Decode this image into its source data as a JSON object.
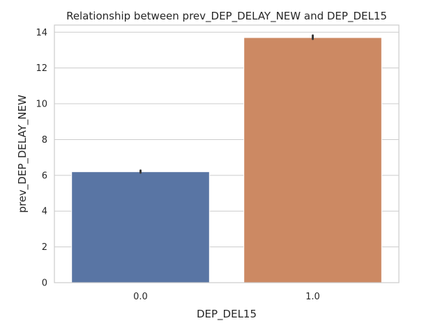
{
  "chart_data": {
    "type": "bar",
    "title": "Relationship between prev_DEP_DELAY_NEW and DEP_DEL15",
    "xlabel": "DEP_DEL15",
    "ylabel": "prev_DEP_DELAY_NEW",
    "categories": [
      "0.0",
      "1.0"
    ],
    "values": [
      6.2,
      13.7
    ],
    "error_bars": [
      [
        6.15,
        6.27
      ],
      [
        13.62,
        13.82
      ]
    ],
    "bar_colors": [
      "#5975a4",
      "#cc8963"
    ],
    "ylim": [
      0,
      14.4
    ],
    "yticks": [
      0,
      2,
      4,
      6,
      8,
      10,
      12,
      14
    ],
    "grid": true
  }
}
